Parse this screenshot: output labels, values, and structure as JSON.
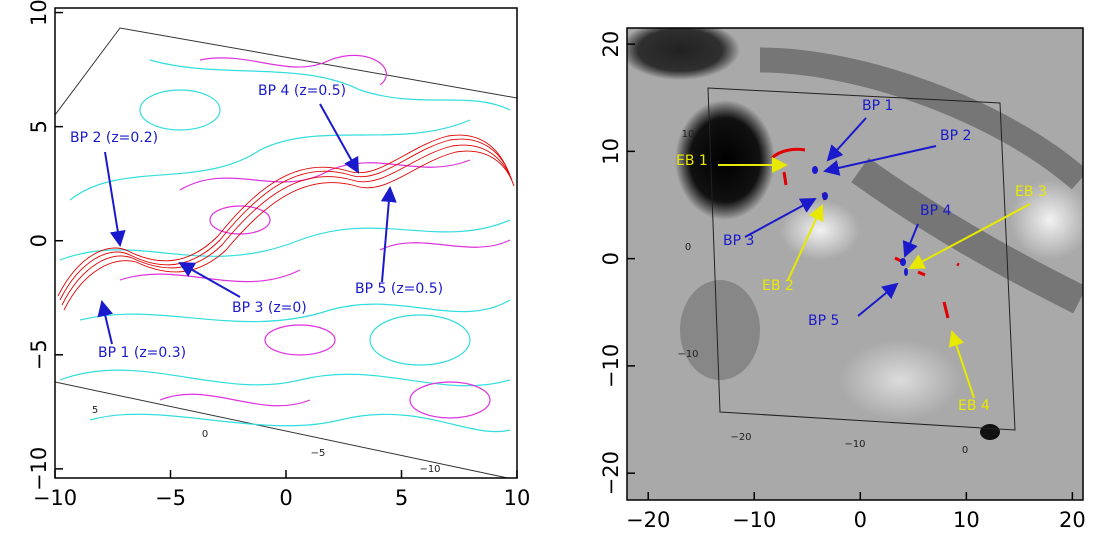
{
  "chart_data": [
    {
      "type": "image",
      "xlim": [
        -10,
        10
      ],
      "ylim": [
        -10.4,
        10.2
      ],
      "xticks": [
        {
          "value": -10,
          "label": "−10"
        },
        {
          "value": -5,
          "label": "−5"
        },
        0,
        5,
        10
      ],
      "yticks": [
        {
          "value": -10,
          "label": "−10"
        },
        {
          "value": -5,
          "label": "−5"
        },
        0,
        5,
        10
      ],
      "inner_labels": [
        "5",
        "0",
        "−5",
        "−10"
      ],
      "annotations": [
        {
          "label": "BP 2 (z=0.2)",
          "color": "#1a1acc"
        },
        {
          "label": "BP 4 (z=0.5)",
          "color": "#1a1acc"
        },
        {
          "label": "BP 3 (z=0)",
          "color": "#1a1acc"
        },
        {
          "label": "BP 5 (z=0.5)",
          "color": "#1a1acc"
        },
        {
          "label": "BP 1 (z=0.3)",
          "color": "#1a1acc"
        }
      ]
    },
    {
      "type": "image",
      "xlim": [
        -22,
        21
      ],
      "ylim": [
        -22.5,
        21.5
      ],
      "xticks": [
        {
          "value": -20,
          "label": "−20"
        },
        {
          "value": -10,
          "label": "−10"
        },
        0,
        10,
        20
      ],
      "yticks": [
        {
          "value": -20,
          "label": "−20"
        },
        {
          "value": -10,
          "label": "−10"
        },
        0,
        10,
        20
      ],
      "inner_labels": [
        "10",
        "0",
        "−10",
        "−20",
        "−10",
        "0"
      ],
      "annotations": [
        {
          "label": "BP 1",
          "color": "#1a1acc"
        },
        {
          "label": "BP 2",
          "color": "#1a1acc"
        },
        {
          "label": "EB 1",
          "color": "#e8e800"
        },
        {
          "label": "BP 3",
          "color": "#1a1acc"
        },
        {
          "label": "EB 2",
          "color": "#e8e800"
        },
        {
          "label": "BP 4",
          "color": "#1a1acc"
        },
        {
          "label": "EB 3",
          "color": "#e8e800"
        },
        {
          "label": "BP 5",
          "color": "#1a1acc"
        },
        {
          "label": "EB 4",
          "color": "#e8e800"
        }
      ]
    }
  ]
}
